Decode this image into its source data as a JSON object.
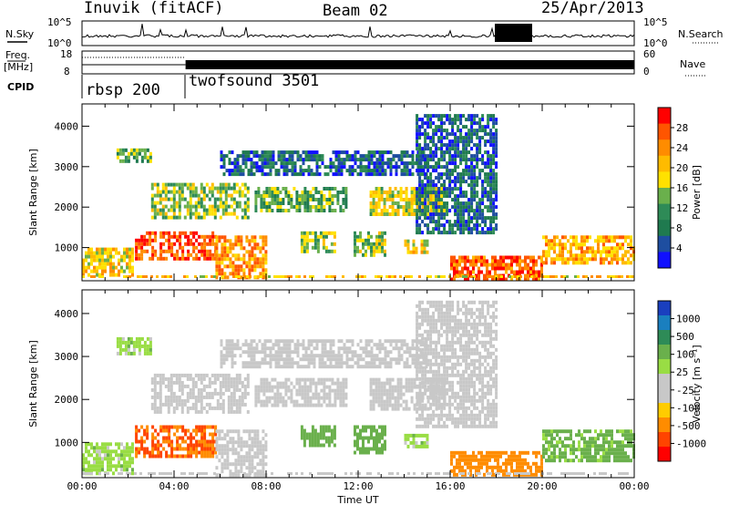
{
  "header": {
    "station": "Inuvik (fitACF)",
    "beam": "Beam 02",
    "date": "25/Apr/2013"
  },
  "top_panels": {
    "nsky_label": "N.Sky",
    "nsky_ticks": [
      "10^5",
      "10^0"
    ],
    "nsearch_label": "N.Search",
    "nsearch_ticks": [
      "10^5",
      "10^0"
    ],
    "freq_label": "Freq.",
    "freq_unit": "[MHz]",
    "freq_ticks": [
      "18",
      "8"
    ],
    "nave_label": "Nave",
    "nave_ticks": [
      "60",
      "0"
    ],
    "cpid_label": "CPID",
    "cpid_segments": [
      {
        "name": "rbsp 200",
        "start_hour": 0,
        "end_hour": 4.5
      },
      {
        "name": "twofsound 3501",
        "start_hour": 4.5,
        "end_hour": 24
      }
    ]
  },
  "colorbars": {
    "power": {
      "label": "Power [dB]",
      "ticks": [
        "28",
        "24",
        "20",
        "16",
        "12",
        "8",
        "4"
      ],
      "colors": [
        "#ff0000",
        "#ff5500",
        "#ff8c00",
        "#ffbb00",
        "#ffe100",
        "#6ab04c",
        "#2e8b57",
        "#1f7a4f",
        "#1e4ea0",
        "#1010ff"
      ]
    },
    "velocity": {
      "label": "Velocity [m s⁻¹]",
      "ticks": [
        "1000",
        "500",
        "100",
        "25",
        "-25",
        "-100",
        "-500",
        "-1000"
      ],
      "colors": [
        "#1a3fbf",
        "#1a7fbf",
        "#2e8b57",
        "#6ab04c",
        "#99dd44",
        "#c8c8c8",
        "#c8c8c8",
        "#ffcc00",
        "#ff8c00",
        "#ff4400",
        "#ff0000"
      ]
    }
  },
  "chart_data": [
    {
      "type": "heatmap",
      "title": "Power",
      "xlabel": "",
      "ylabel": "Slant Range [km]",
      "ylim": [
        180,
        4550
      ],
      "xlim": [
        0,
        24
      ],
      "y_ticks": [
        "4000",
        "3000",
        "2000",
        "1000"
      ],
      "x_ticks": [],
      "value_label": "Power [dB]",
      "value_range": [
        0,
        30
      ],
      "features": [
        {
          "t0": 0.0,
          "t1": 2.2,
          "r0": 300,
          "r1": 1000,
          "level": 18
        },
        {
          "t0": 2.3,
          "t1": 5.8,
          "r0": 700,
          "r1": 1400,
          "level": 26
        },
        {
          "t0": 5.8,
          "t1": 8.0,
          "r0": 250,
          "r1": 1300,
          "level": 22
        },
        {
          "t0": 3.0,
          "t1": 7.2,
          "r0": 1700,
          "r1": 2600,
          "level": 14
        },
        {
          "t0": 7.5,
          "t1": 11.5,
          "r0": 1900,
          "r1": 2500,
          "level": 12
        },
        {
          "t0": 12.5,
          "t1": 15.8,
          "r0": 1800,
          "r1": 2500,
          "level": 16
        },
        {
          "t0": 9.5,
          "t1": 11.0,
          "r0": 900,
          "r1": 1400,
          "level": 14
        },
        {
          "t0": 11.8,
          "t1": 13.2,
          "r0": 800,
          "r1": 1400,
          "level": 14
        },
        {
          "t0": 14.0,
          "t1": 15.0,
          "r0": 900,
          "r1": 1200,
          "level": 18
        },
        {
          "t0": 16.0,
          "t1": 20.0,
          "r0": 250,
          "r1": 800,
          "level": 25
        },
        {
          "t0": 20.0,
          "t1": 24.0,
          "r0": 600,
          "r1": 1300,
          "level": 20
        },
        {
          "t0": 6.0,
          "t1": 15.0,
          "r0": 2800,
          "r1": 3400,
          "level": 6
        },
        {
          "t0": 14.5,
          "t1": 18.0,
          "r0": 1400,
          "r1": 4300,
          "level": 6
        },
        {
          "t0": 1.5,
          "t1": 3.0,
          "r0": 3100,
          "r1": 3450,
          "level": 12
        }
      ]
    },
    {
      "type": "heatmap",
      "title": "Velocity",
      "xlabel": "Time UT",
      "ylabel": "Slant Range [km]",
      "ylim": [
        180,
        4550
      ],
      "xlim": [
        0,
        24
      ],
      "y_ticks": [
        "4000",
        "3000",
        "2000",
        "1000"
      ],
      "x_ticks": [
        "00:00",
        "04:00",
        "08:00",
        "12:00",
        "16:00",
        "20:00",
        "00:00"
      ],
      "value_label": "Velocity [m s⁻¹]",
      "value_range": [
        -1000,
        1000
      ],
      "features": [
        {
          "t0": 0.0,
          "t1": 2.2,
          "r0": 300,
          "r1": 1000,
          "level": 60
        },
        {
          "t0": 2.3,
          "t1": 5.8,
          "r0": 700,
          "r1": 1400,
          "level": -300
        },
        {
          "t0": 5.8,
          "t1": 8.0,
          "r0": 250,
          "r1": 1300,
          "level": 0
        },
        {
          "t0": 3.0,
          "t1": 7.2,
          "r0": 1700,
          "r1": 2600,
          "level": 0
        },
        {
          "t0": 7.5,
          "t1": 11.5,
          "r0": 1900,
          "r1": 2500,
          "level": 0
        },
        {
          "t0": 12.5,
          "t1": 15.8,
          "r0": 1800,
          "r1": 2500,
          "level": 0
        },
        {
          "t0": 9.5,
          "t1": 11.0,
          "r0": 900,
          "r1": 1400,
          "level": 200
        },
        {
          "t0": 11.8,
          "t1": 13.2,
          "r0": 800,
          "r1": 1400,
          "level": 200
        },
        {
          "t0": 14.0,
          "t1": 15.0,
          "r0": 900,
          "r1": 1200,
          "level": 60
        },
        {
          "t0": 16.0,
          "t1": 20.0,
          "r0": 250,
          "r1": 800,
          "level": -200
        },
        {
          "t0": 20.0,
          "t1": 24.0,
          "r0": 600,
          "r1": 1300,
          "level": 150
        },
        {
          "t0": 6.0,
          "t1": 15.0,
          "r0": 2800,
          "r1": 3400,
          "level": 0
        },
        {
          "t0": 14.5,
          "t1": 18.0,
          "r0": 1400,
          "r1": 4300,
          "level": 0
        },
        {
          "t0": 1.5,
          "t1": 3.0,
          "r0": 3100,
          "r1": 3450,
          "level": 60
        }
      ]
    }
  ]
}
